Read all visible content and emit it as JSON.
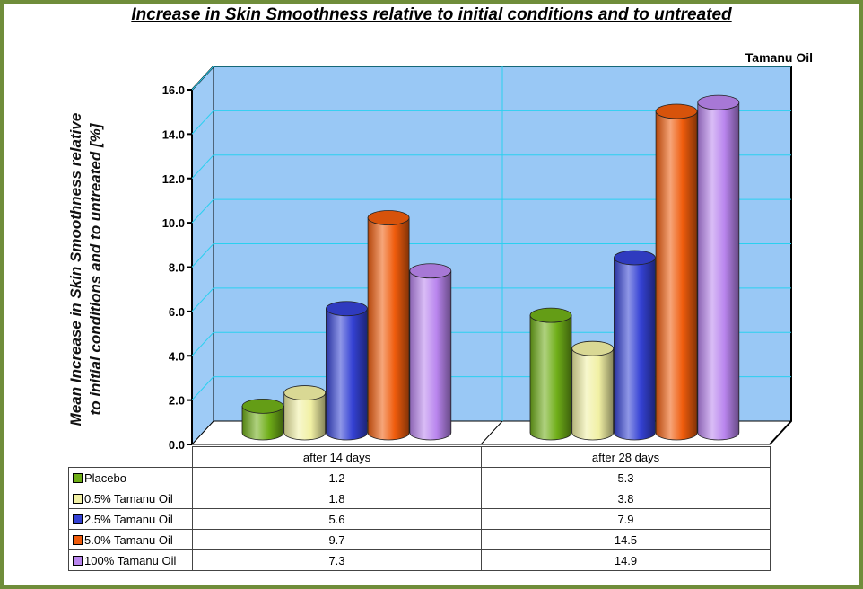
{
  "page": {
    "border_color": "#6f8d3a"
  },
  "chart_data": {
    "type": "bar",
    "title": "Increase in Skin Smoothness relative to initial conditions and to untreated",
    "series_caption": "Tamanu Oil",
    "ylabel": "Mean Increase in Skin Smoothness relative to initial conditions and to untreated [%]",
    "xlabel": "",
    "categories": [
      "after 14 days",
      "after 28 days"
    ],
    "ylim": [
      0,
      16
    ],
    "yticks": [
      "0.0",
      "2.0",
      "4.0",
      "6.0",
      "8.0",
      "10.0",
      "12.0",
      "14.0",
      "16.0"
    ],
    "grid": true,
    "plot_background": "#99c8f5",
    "series": [
      {
        "name": "Placebo",
        "values": [
          1.2,
          5.3
        ],
        "color": "#6fae18",
        "value_labels": [
          "1.2",
          "5.3"
        ]
      },
      {
        "name": "0.5% Tamanu Oil",
        "values": [
          1.8,
          3.8
        ],
        "color": "#f1f0a4",
        "value_labels": [
          "1.8",
          "3.8"
        ]
      },
      {
        "name": "2.5%  Tamanu Oil",
        "values": [
          5.6,
          7.9
        ],
        "color": "#3441d4",
        "value_labels": [
          "5.6",
          "7.9"
        ]
      },
      {
        "name": "5.0%  Tamanu Oil",
        "values": [
          9.7,
          14.5
        ],
        "color": "#ef5c0c",
        "value_labels": [
          "9.7",
          "14.5"
        ]
      },
      {
        "name": "100%  Tamanu Oil",
        "values": [
          7.3,
          14.9
        ],
        "color": "#b985ee",
        "value_labels": [
          "7.3",
          "14.9"
        ]
      }
    ]
  }
}
